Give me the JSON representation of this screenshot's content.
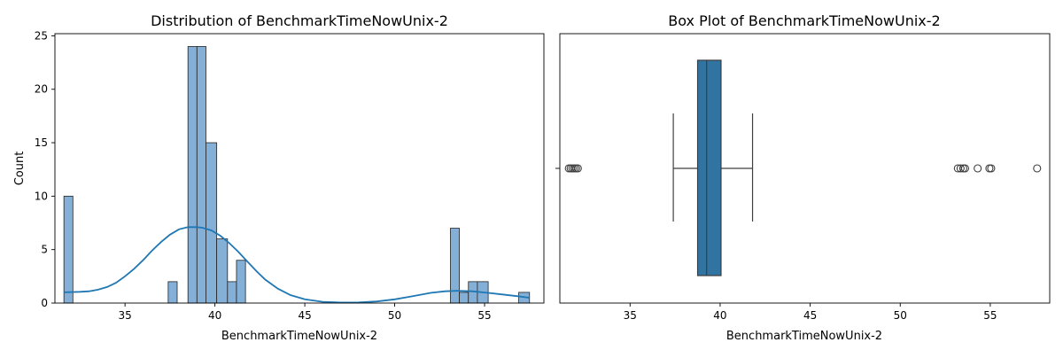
{
  "chart_data": [
    {
      "type": "histogram",
      "title": "Distribution of BenchmarkTimeNowUnix-2",
      "xlabel": "BenchmarkTimeNowUnix-2",
      "ylabel": "Count",
      "xlim": [
        31.1,
        58.3
      ],
      "ylim": [
        0,
        25.2
      ],
      "xticks": [
        35,
        40,
        45,
        50,
        55
      ],
      "yticks": [
        0,
        5,
        10,
        15,
        20,
        25
      ],
      "bar_color": "#84b0d8",
      "kde_color": "#1f77b4",
      "bins": [
        {
          "x0": 31.6,
          "x1": 32.1,
          "count": 10
        },
        {
          "x0": 37.4,
          "x1": 37.9,
          "count": 2
        },
        {
          "x0": 38.5,
          "x1": 39.0,
          "count": 24
        },
        {
          "x0": 39.0,
          "x1": 39.5,
          "count": 24
        },
        {
          "x0": 39.5,
          "x1": 40.1,
          "count": 15
        },
        {
          "x0": 40.1,
          "x1": 40.7,
          "count": 6
        },
        {
          "x0": 40.7,
          "x1": 41.2,
          "count": 2
        },
        {
          "x0": 41.2,
          "x1": 41.7,
          "count": 4
        },
        {
          "x0": 53.1,
          "x1": 53.6,
          "count": 7
        },
        {
          "x0": 53.6,
          "x1": 54.1,
          "count": 1
        },
        {
          "x0": 54.1,
          "x1": 54.6,
          "count": 2
        },
        {
          "x0": 54.6,
          "x1": 55.2,
          "count": 2
        },
        {
          "x0": 56.9,
          "x1": 57.5,
          "count": 1
        }
      ],
      "kde": {
        "x": [
          31.6,
          32.5,
          33.0,
          33.5,
          34.0,
          34.5,
          35.0,
          35.5,
          36.0,
          36.5,
          37.0,
          37.5,
          38.0,
          38.5,
          39.0,
          39.3,
          39.8,
          40.3,
          40.8,
          41.3,
          41.8,
          42.3,
          42.8,
          43.5,
          44.2,
          45.0,
          46.0,
          47.0,
          48.0,
          49.0,
          50.0,
          51.0,
          52.0,
          52.8,
          53.5,
          54.3,
          55.2,
          56.0,
          56.8,
          57.5
        ],
        "y": [
          1.0,
          1.05,
          1.1,
          1.25,
          1.5,
          1.9,
          2.5,
          3.2,
          4.0,
          4.9,
          5.7,
          6.4,
          6.9,
          7.1,
          7.1,
          7.05,
          6.8,
          6.3,
          5.6,
          4.8,
          3.9,
          3.0,
          2.2,
          1.35,
          0.75,
          0.35,
          0.12,
          0.05,
          0.06,
          0.15,
          0.35,
          0.65,
          0.95,
          1.1,
          1.15,
          1.1,
          0.95,
          0.8,
          0.65,
          0.5
        ]
      }
    },
    {
      "type": "box",
      "title": "Box Plot of BenchmarkTimeNowUnix-2",
      "xlabel": "BenchmarkTimeNowUnix-2",
      "xlim": [
        31.1,
        58.3
      ],
      "xticks": [
        35,
        40,
        45,
        50,
        55
      ],
      "box_color": "#3274a1",
      "whisker_low": 37.4,
      "q1": 38.75,
      "median": 39.25,
      "q3": 40.05,
      "whisker_high": 41.8,
      "outliers": [
        31.6,
        31.7,
        31.8,
        31.9,
        32.0,
        32.1,
        53.2,
        53.35,
        53.5,
        53.6,
        54.3,
        54.95,
        55.05,
        57.6
      ]
    }
  ]
}
